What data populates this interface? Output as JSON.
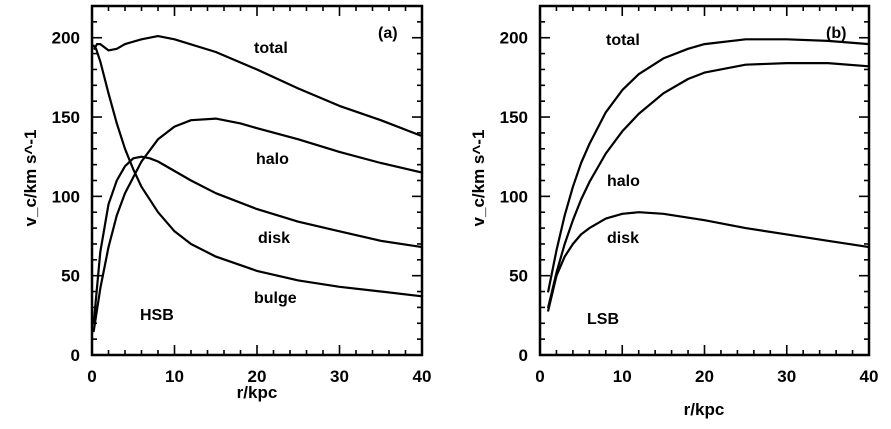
{
  "chart_data": [
    {
      "type": "line",
      "panel_label": "(a)",
      "galaxy_label": "HSB",
      "xlabel": "r/kpc",
      "ylabel": "v_c/km s^-1",
      "xlim": [
        0,
        40
      ],
      "ylim": [
        0,
        220
      ],
      "x_ticks": [
        0,
        10,
        20,
        30,
        40
      ],
      "y_ticks": [
        0,
        50,
        100,
        150,
        200
      ],
      "series": [
        {
          "name": "total",
          "x": [
            0.3,
            0.6,
            1,
            2,
            3,
            4,
            6,
            8,
            10,
            15,
            20,
            25,
            30,
            35,
            40
          ],
          "y": [
            193,
            196,
            196,
            192,
            193,
            196,
            199,
            201,
            199,
            191,
            180,
            168,
            157,
            148,
            138
          ]
        },
        {
          "name": "halo",
          "x": [
            0.2,
            1,
            2,
            3,
            4,
            6,
            8,
            10,
            12,
            15,
            18,
            20,
            25,
            30,
            35,
            40
          ],
          "y": [
            15,
            42,
            68,
            88,
            102,
            122,
            136,
            144,
            148,
            149,
            146,
            143,
            136,
            128,
            121,
            115
          ]
        },
        {
          "name": "disk",
          "x": [
            0.2,
            1,
            2,
            3,
            4,
            5,
            6,
            7,
            8,
            10,
            12,
            15,
            20,
            25,
            30,
            35,
            40
          ],
          "y": [
            20,
            65,
            95,
            110,
            119,
            124,
            125,
            124,
            122,
            116,
            110,
            102,
            92,
            84,
            78,
            72,
            68
          ]
        },
        {
          "name": "bulge",
          "x": [
            0.2,
            0.5,
            1,
            2,
            3,
            4,
            5,
            6,
            8,
            10,
            12,
            15,
            20,
            25,
            30,
            35,
            40
          ],
          "y": [
            195,
            193,
            185,
            165,
            146,
            130,
            117,
            106,
            90,
            78,
            70,
            62,
            53,
            47,
            43,
            40,
            37
          ]
        }
      ]
    },
    {
      "type": "line",
      "panel_label": "(b)",
      "galaxy_label": "LSB",
      "xlabel": "r/kpc",
      "ylabel": "v_c/km s^-1",
      "xlim": [
        0,
        40
      ],
      "ylim": [
        0,
        220
      ],
      "x_ticks": [
        0,
        10,
        20,
        30,
        40
      ],
      "y_ticks": [
        0,
        50,
        100,
        150,
        200
      ],
      "series": [
        {
          "name": "total",
          "x": [
            1,
            2,
            3,
            4,
            5,
            6,
            8,
            10,
            12,
            15,
            18,
            20,
            25,
            30,
            35,
            40
          ],
          "y": [
            40,
            66,
            88,
            106,
            121,
            133,
            153,
            167,
            177,
            187,
            193,
            196,
            199,
            199,
            198,
            196
          ]
        },
        {
          "name": "halo",
          "x": [
            1,
            2,
            3,
            4,
            5,
            6,
            8,
            10,
            12,
            15,
            18,
            20,
            25,
            30,
            35,
            40
          ],
          "y": [
            30,
            52,
            70,
            85,
            98,
            109,
            127,
            141,
            152,
            165,
            174,
            178,
            183,
            184,
            184,
            182
          ]
        },
        {
          "name": "disk",
          "x": [
            1,
            2,
            3,
            4,
            5,
            6,
            8,
            10,
            12,
            15,
            20,
            25,
            30,
            35,
            40
          ],
          "y": [
            28,
            50,
            62,
            70,
            76,
            80,
            86,
            89,
            90,
            89,
            85,
            80,
            76,
            72,
            68
          ]
        }
      ]
    }
  ]
}
